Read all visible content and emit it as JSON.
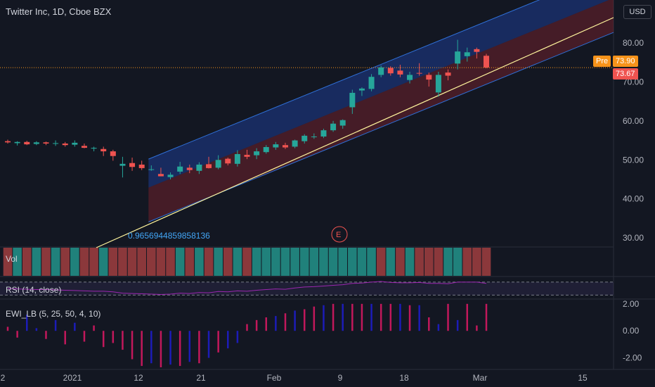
{
  "header": {
    "title": "Twitter Inc, 1D, Cboe BZX",
    "currency": "USD"
  },
  "price_tags": {
    "pre_label": "Pre",
    "pre_value": "73.90",
    "last_value": "73.67"
  },
  "channel_label": "0.9656944859858136",
  "earnings_marker": "E",
  "panes": {
    "volume_label": "Vol",
    "rsi_label": "RSI (14, close)",
    "ewi_label": "EWI_LB (5, 25, 50, 4, 10)"
  },
  "colors": {
    "up": "#26a69a",
    "down": "#ef5350",
    "background": "#131722",
    "rsi": "#9c27b0",
    "channel_upper": "#2962ff",
    "channel_lower": "#b22833"
  },
  "chart_data": [
    {
      "type": "candlestick",
      "y_ticks": [
        30,
        40,
        50,
        60,
        70,
        80
      ],
      "y_tick_labels": [
        "30.00",
        "40.00",
        "50.00",
        "60.00",
        "70.00",
        "80.00"
      ],
      "ylim": [
        27.5,
        91
      ],
      "x_tick_labels": [
        "2",
        "2021",
        "12",
        "21",
        "Feb",
        "9",
        "18",
        "Mar",
        "15"
      ],
      "candles": [
        {
          "o": 54.8,
          "h": 55.2,
          "l": 54.2,
          "c": 54.5
        },
        {
          "o": 54.3,
          "h": 54.8,
          "l": 53.7,
          "c": 54.6
        },
        {
          "o": 54.6,
          "h": 54.9,
          "l": 53.8,
          "c": 54.0
        },
        {
          "o": 54.1,
          "h": 54.8,
          "l": 53.8,
          "c": 54.5
        },
        {
          "o": 54.5,
          "h": 54.7,
          "l": 53.8,
          "c": 54.2
        },
        {
          "o": 54.3,
          "h": 55.0,
          "l": 53.6,
          "c": 54.3
        },
        {
          "o": 54.2,
          "h": 54.6,
          "l": 53.4,
          "c": 53.8
        },
        {
          "o": 53.9,
          "h": 55.0,
          "l": 53.4,
          "c": 54.4
        },
        {
          "o": 53.6,
          "h": 54.2,
          "l": 53.0,
          "c": 53.1
        },
        {
          "o": 52.9,
          "h": 53.4,
          "l": 52.2,
          "c": 53.1
        },
        {
          "o": 52.8,
          "h": 53.4,
          "l": 51.0,
          "c": 52.2
        },
        {
          "o": 52.2,
          "h": 52.6,
          "l": 49.8,
          "c": 51.0
        },
        {
          "o": 48.5,
          "h": 50.8,
          "l": 45.5,
          "c": 49.0
        },
        {
          "o": 49.2,
          "h": 50.6,
          "l": 47.2,
          "c": 48.2
        },
        {
          "o": 48.8,
          "h": 49.8,
          "l": 47.4,
          "c": 47.9
        },
        {
          "o": 47.6,
          "h": 48.6,
          "l": 47.2,
          "c": 47.6
        },
        {
          "o": 46.4,
          "h": 48.0,
          "l": 45.8,
          "c": 45.8
        },
        {
          "o": 45.6,
          "h": 46.8,
          "l": 45.0,
          "c": 46.2
        },
        {
          "o": 47.0,
          "h": 49.5,
          "l": 46.4,
          "c": 48.3
        },
        {
          "o": 48.0,
          "h": 48.8,
          "l": 46.6,
          "c": 47.4
        },
        {
          "o": 47.2,
          "h": 49.4,
          "l": 46.4,
          "c": 48.8
        },
        {
          "o": 48.9,
          "h": 50.8,
          "l": 47.8,
          "c": 47.9
        },
        {
          "o": 48.0,
          "h": 51.2,
          "l": 47.6,
          "c": 50.0
        },
        {
          "o": 50.3,
          "h": 50.6,
          "l": 48.6,
          "c": 49.1
        },
        {
          "o": 49.0,
          "h": 52.5,
          "l": 48.3,
          "c": 51.5
        },
        {
          "o": 51.3,
          "h": 52.6,
          "l": 50.2,
          "c": 50.8
        },
        {
          "o": 51.2,
          "h": 53.0,
          "l": 50.2,
          "c": 52.2
        },
        {
          "o": 52.0,
          "h": 53.8,
          "l": 51.6,
          "c": 53.3
        },
        {
          "o": 53.2,
          "h": 54.6,
          "l": 52.6,
          "c": 54.0
        },
        {
          "o": 53.8,
          "h": 54.4,
          "l": 52.8,
          "c": 53.2
        },
        {
          "o": 53.4,
          "h": 55.2,
          "l": 53.0,
          "c": 55.0
        },
        {
          "o": 54.8,
          "h": 56.6,
          "l": 54.2,
          "c": 56.2
        },
        {
          "o": 56.0,
          "h": 56.8,
          "l": 55.4,
          "c": 56.0
        },
        {
          "o": 56.0,
          "h": 58.0,
          "l": 55.6,
          "c": 57.6
        },
        {
          "o": 57.6,
          "h": 60.0,
          "l": 57.2,
          "c": 59.3
        },
        {
          "o": 58.8,
          "h": 60.4,
          "l": 58.0,
          "c": 60.2
        },
        {
          "o": 63.5,
          "h": 68.0,
          "l": 61.8,
          "c": 67.2
        },
        {
          "o": 67.8,
          "h": 68.6,
          "l": 66.4,
          "c": 68.3
        },
        {
          "o": 68.2,
          "h": 72.0,
          "l": 67.6,
          "c": 71.3
        },
        {
          "o": 71.8,
          "h": 74.2,
          "l": 71.2,
          "c": 73.7
        },
        {
          "o": 73.6,
          "h": 74.0,
          "l": 71.6,
          "c": 72.2
        },
        {
          "o": 72.9,
          "h": 74.4,
          "l": 71.2,
          "c": 71.9
        },
        {
          "o": 70.5,
          "h": 72.6,
          "l": 69.6,
          "c": 71.8
        },
        {
          "o": 72.3,
          "h": 74.8,
          "l": 71.6,
          "c": 72.2
        },
        {
          "o": 71.8,
          "h": 72.4,
          "l": 68.8,
          "c": 70.6
        },
        {
          "o": 67.3,
          "h": 72.6,
          "l": 66.2,
          "c": 71.8
        },
        {
          "o": 72.4,
          "h": 73.2,
          "l": 70.4,
          "c": 71.6
        },
        {
          "o": 74.7,
          "h": 80.8,
          "l": 73.2,
          "c": 77.8
        },
        {
          "o": 76.6,
          "h": 78.8,
          "l": 75.2,
          "c": 77.6
        },
        {
          "o": 78.4,
          "h": 78.8,
          "l": 76.0,
          "c": 77.7
        },
        {
          "o": 76.7,
          "h": 77.2,
          "l": 73.5,
          "c": 73.7
        }
      ],
      "volume_colors": [
        "down",
        "up",
        "down",
        "up",
        "down",
        "up",
        "down",
        "up",
        "down",
        "down",
        "up",
        "down",
        "down",
        "down",
        "down",
        "down",
        "down",
        "down",
        "up",
        "down",
        "up",
        "down",
        "up",
        "down",
        "up",
        "down",
        "up",
        "up",
        "up",
        "up",
        "up",
        "up",
        "up",
        "up",
        "up",
        "up",
        "up",
        "up",
        "up",
        "down",
        "up",
        "down",
        "up",
        "down",
        "down",
        "down",
        "up",
        "up",
        "down",
        "down",
        "down"
      ],
      "channel": {
        "start_candle": 15,
        "slope": 1.0,
        "mid_at_start": 38.2,
        "upper_offset": 12.3,
        "lower_offset": -3.8
      },
      "last_price": 73.67
    },
    {
      "type": "line",
      "name": "RSI (14, close)",
      "ylim": [
        20,
        85
      ],
      "bands": [
        70,
        30
      ],
      "values": [
        50,
        49,
        48,
        47,
        47,
        46,
        45,
        44,
        43,
        42,
        42,
        40,
        36,
        35,
        34,
        33,
        32,
        33,
        36,
        35,
        38,
        37,
        41,
        40,
        43,
        42,
        45,
        47,
        49,
        48,
        52,
        55,
        56,
        58,
        60,
        62,
        66,
        67,
        70,
        72,
        69,
        68,
        68,
        69,
        66,
        66,
        65,
        70,
        70,
        70,
        66
      ]
    },
    {
      "type": "bar",
      "name": "EWI_LB (5, 25, 50, 4, 10)",
      "y_ticks": [
        2,
        0,
        -2
      ],
      "y_tick_labels": [
        "2.00",
        "0.00",
        "-2.00"
      ],
      "ylim": [
        -2.7,
        2.2
      ],
      "values": [
        0.3,
        -0.5,
        1.2,
        0.2,
        -0.6,
        0.8,
        -1.0,
        0.6,
        -0.8,
        0.4,
        -1.2,
        -0.9,
        -1.4,
        -2.1,
        -2.6,
        -2.4,
        -2.7,
        -2.5,
        -2.6,
        -2.3,
        -2.4,
        -2.0,
        -1.6,
        -1.3,
        -0.9,
        0.5,
        0.8,
        1.0,
        1.1,
        1.3,
        1.5,
        1.6,
        1.8,
        1.9,
        2.0,
        2.0,
        2.0,
        2.0,
        2.0,
        2.0,
        2.0,
        2.0,
        1.9,
        1.9,
        1.0,
        0.5,
        2.0,
        0.8,
        2.0,
        0.4,
        2.0
      ],
      "colors_by_index": "mixed red / blue"
    }
  ]
}
